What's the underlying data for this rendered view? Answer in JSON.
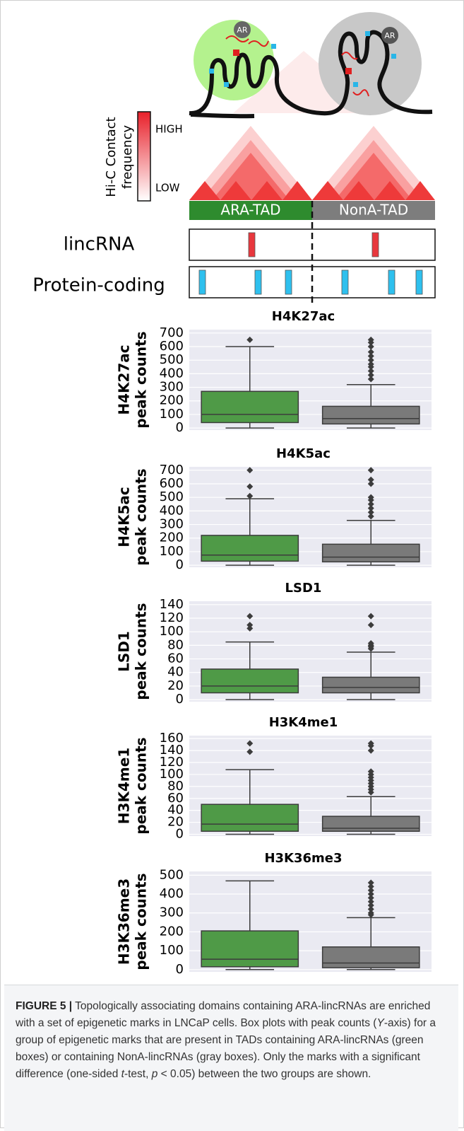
{
  "diagram": {
    "ar_left": "AR",
    "ar_right": "AR",
    "legend_title": [
      "Hi-C Contact",
      "frequency"
    ],
    "legend_high": "HIGH",
    "legend_low": "LOW",
    "tad_left": "ARA-TAD",
    "tad_right": "NonA-TAD",
    "row_lincrna": "lincRNA",
    "row_protein": "Protein-coding"
  },
  "chart_data": [
    {
      "type": "box",
      "title": "H4K27ac",
      "ylabel": [
        "H4K27ac",
        "peak counts"
      ],
      "ylim": [
        -15,
        725
      ],
      "yticks": [
        0,
        100,
        200,
        300,
        400,
        500,
        600,
        700
      ],
      "grid": true,
      "boxes": [
        {
          "color": "#4f9a47",
          "whislo": 0,
          "q1": 40,
          "med": 100,
          "q3": 270,
          "whishi": 600,
          "fliers": [
            650
          ]
        },
        {
          "color": "#7a7a7a",
          "whislo": 0,
          "q1": 30,
          "med": 70,
          "q3": 160,
          "whishi": 320,
          "fliers": [
            360,
            390,
            420,
            450,
            470,
            500,
            530,
            560,
            600,
            630,
            650
          ]
        }
      ]
    },
    {
      "type": "box",
      "title": "H4K5ac",
      "ylabel": [
        "H4K5ac",
        "peak counts"
      ],
      "ylim": [
        -15,
        725
      ],
      "yticks": [
        0,
        100,
        200,
        300,
        400,
        500,
        600,
        700
      ],
      "grid": true,
      "boxes": [
        {
          "color": "#4f9a47",
          "whislo": 0,
          "q1": 30,
          "med": 75,
          "q3": 220,
          "whishi": 490,
          "fliers": [
            510,
            580,
            700
          ]
        },
        {
          "color": "#7a7a7a",
          "whislo": 0,
          "q1": 25,
          "med": 60,
          "q3": 155,
          "whishi": 330,
          "fliers": [
            360,
            390,
            420,
            450,
            480,
            500,
            600,
            630,
            700
          ]
        }
      ]
    },
    {
      "type": "box",
      "title": "LSD1",
      "ylabel": [
        "LSD1",
        "peak counts"
      ],
      "ylim": [
        -3,
        145
      ],
      "yticks": [
        0,
        20,
        40,
        60,
        80,
        100,
        120,
        140
      ],
      "grid": true,
      "boxes": [
        {
          "color": "#4f9a47",
          "whislo": 0,
          "q1": 10,
          "med": 20,
          "q3": 45,
          "whishi": 85,
          "fliers": [
            105,
            110,
            123
          ]
        },
        {
          "color": "#7a7a7a",
          "whislo": 0,
          "q1": 10,
          "med": 18,
          "q3": 33,
          "whishi": 70,
          "fliers": [
            75,
            78,
            80,
            83,
            110,
            123
          ]
        }
      ]
    },
    {
      "type": "box",
      "title": "H3K4me1",
      "ylabel": [
        "H3K4me1",
        "peak counts"
      ],
      "ylim": [
        -3,
        165
      ],
      "yticks": [
        0,
        20,
        40,
        60,
        80,
        100,
        120,
        140,
        160
      ],
      "grid": true,
      "boxes": [
        {
          "color": "#4f9a47",
          "whislo": 0,
          "q1": 5,
          "med": 17,
          "q3": 50,
          "whishi": 108,
          "fliers": [
            138,
            152
          ]
        },
        {
          "color": "#7a7a7a",
          "whislo": 0,
          "q1": 5,
          "med": 10,
          "q3": 30,
          "whishi": 63,
          "fliers": [
            70,
            75,
            80,
            85,
            90,
            95,
            100,
            105,
            140,
            148,
            152
          ]
        }
      ]
    },
    {
      "type": "box",
      "title": "H3K36me3",
      "ylabel": [
        "H3K36me3",
        "peak counts"
      ],
      "ylim": [
        -12,
        520
      ],
      "yticks": [
        0,
        100,
        200,
        300,
        400,
        500
      ],
      "grid": true,
      "boxes": [
        {
          "color": "#4f9a47",
          "whislo": 0,
          "q1": 15,
          "med": 55,
          "q3": 205,
          "whishi": 470,
          "fliers": []
        },
        {
          "color": "#7a7a7a",
          "whislo": 0,
          "q1": 10,
          "med": 35,
          "q3": 120,
          "whishi": 275,
          "fliers": [
            290,
            300,
            320,
            340,
            360,
            380,
            400,
            420,
            440,
            460
          ]
        }
      ]
    }
  ],
  "caption": {
    "label": "FIGURE 5 |",
    "parts": [
      "Topologically associating domains containing ARA-lincRNAs are enriched with a set of epigenetic marks in LNCaP cells. Box plots with peak counts (",
      "Y",
      "-axis) for a group of epigenetic marks that are present in TADs containing ARA-lincRNAs (green boxes) or containing NonA-lincRNAs (gray boxes). Only the marks with a significant difference (one-sided ",
      "t",
      "-test, ",
      "p",
      " < 0.05) between the two groups are shown."
    ]
  }
}
